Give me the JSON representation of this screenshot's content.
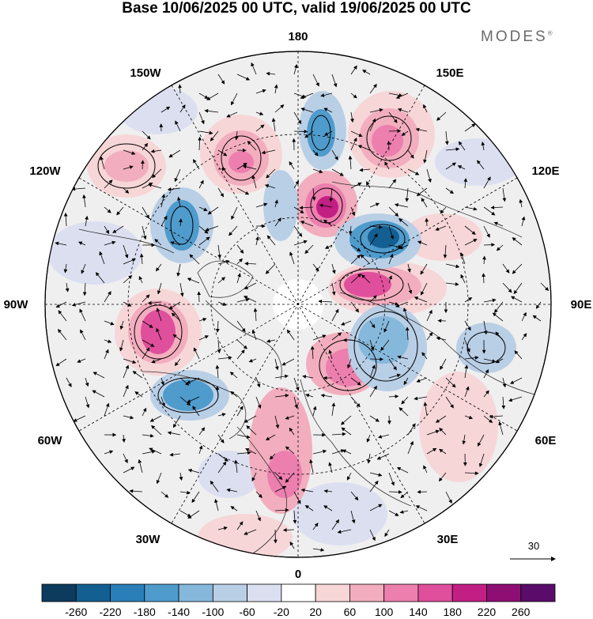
{
  "title": "Base 10/06/2025 00 UTC, valid 19/06/2025 00 UTC",
  "brand": "MODES",
  "brand_mark": "®",
  "longitude_labels": {
    "top": "180",
    "bottom": "0",
    "left": "90W",
    "right": "90E",
    "upper_left_1": "150W",
    "upper_left_2": "120W",
    "lower_left_1": "60W",
    "lower_left_2": "30W",
    "upper_right_1": "150E",
    "upper_right_2": "120E",
    "lower_right_1": "60E",
    "lower_right_2": "30E"
  },
  "vector_reference": {
    "value": "30"
  },
  "colorbar": {
    "ticks": [
      "-260",
      "-220",
      "-180",
      "-140",
      "-100",
      "-60",
      "-20",
      "20",
      "60",
      "100",
      "140",
      "180",
      "220",
      "260"
    ],
    "colors": [
      "#0d3b5e",
      "#145f91",
      "#2a7fb8",
      "#4f9bcc",
      "#86b8dc",
      "#b9cfe6",
      "#dcdff0",
      "#ffffff",
      "#f7d6d8",
      "#f2aebe",
      "#ec7fae",
      "#e04f9c",
      "#c21f84",
      "#8e0f73",
      "#5a0c6a"
    ]
  },
  "colors": {
    "ocean_grey": "#eeeeee",
    "negative_dark": "#1f5f92",
    "positive_dark": "#d03a8b"
  }
}
